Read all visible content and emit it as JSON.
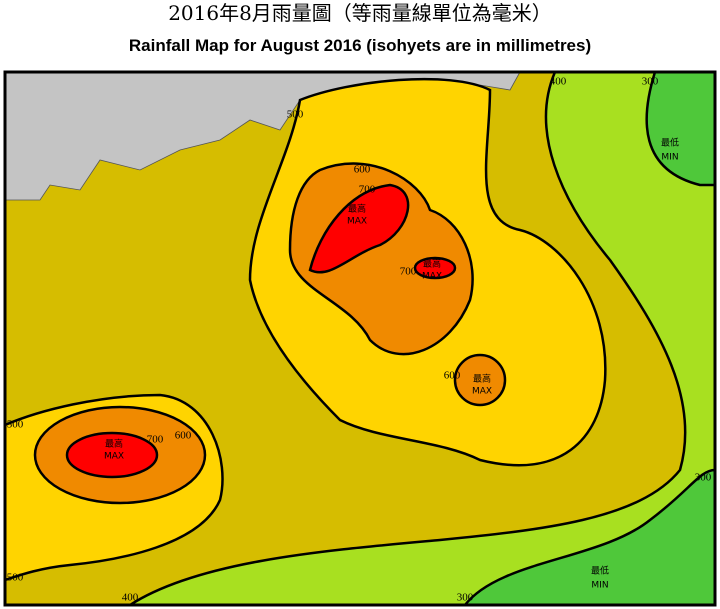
{
  "header": {
    "title_zh": "2016年8月雨量圖（等雨量線單位為毫米）",
    "title_en": "Rainfall Map for August 2016 (isohyets are in millimetres)"
  },
  "isohyet_labels": [
    500,
    400,
    300,
    600,
    700,
    700,
    600,
    500,
    700,
    600,
    300,
    500,
    400,
    300
  ],
  "max_markers": [
    {
      "zh": "最高",
      "en": "MAX"
    },
    {
      "zh": "最高",
      "en": "MAX"
    },
    {
      "zh": "最高",
      "en": "MAX"
    },
    {
      "zh": "最高",
      "en": "MAX"
    }
  ],
  "min_markers": [
    {
      "zh": "最低",
      "en": "MIN"
    },
    {
      "zh": "最低",
      "en": "MIN"
    }
  ]
}
